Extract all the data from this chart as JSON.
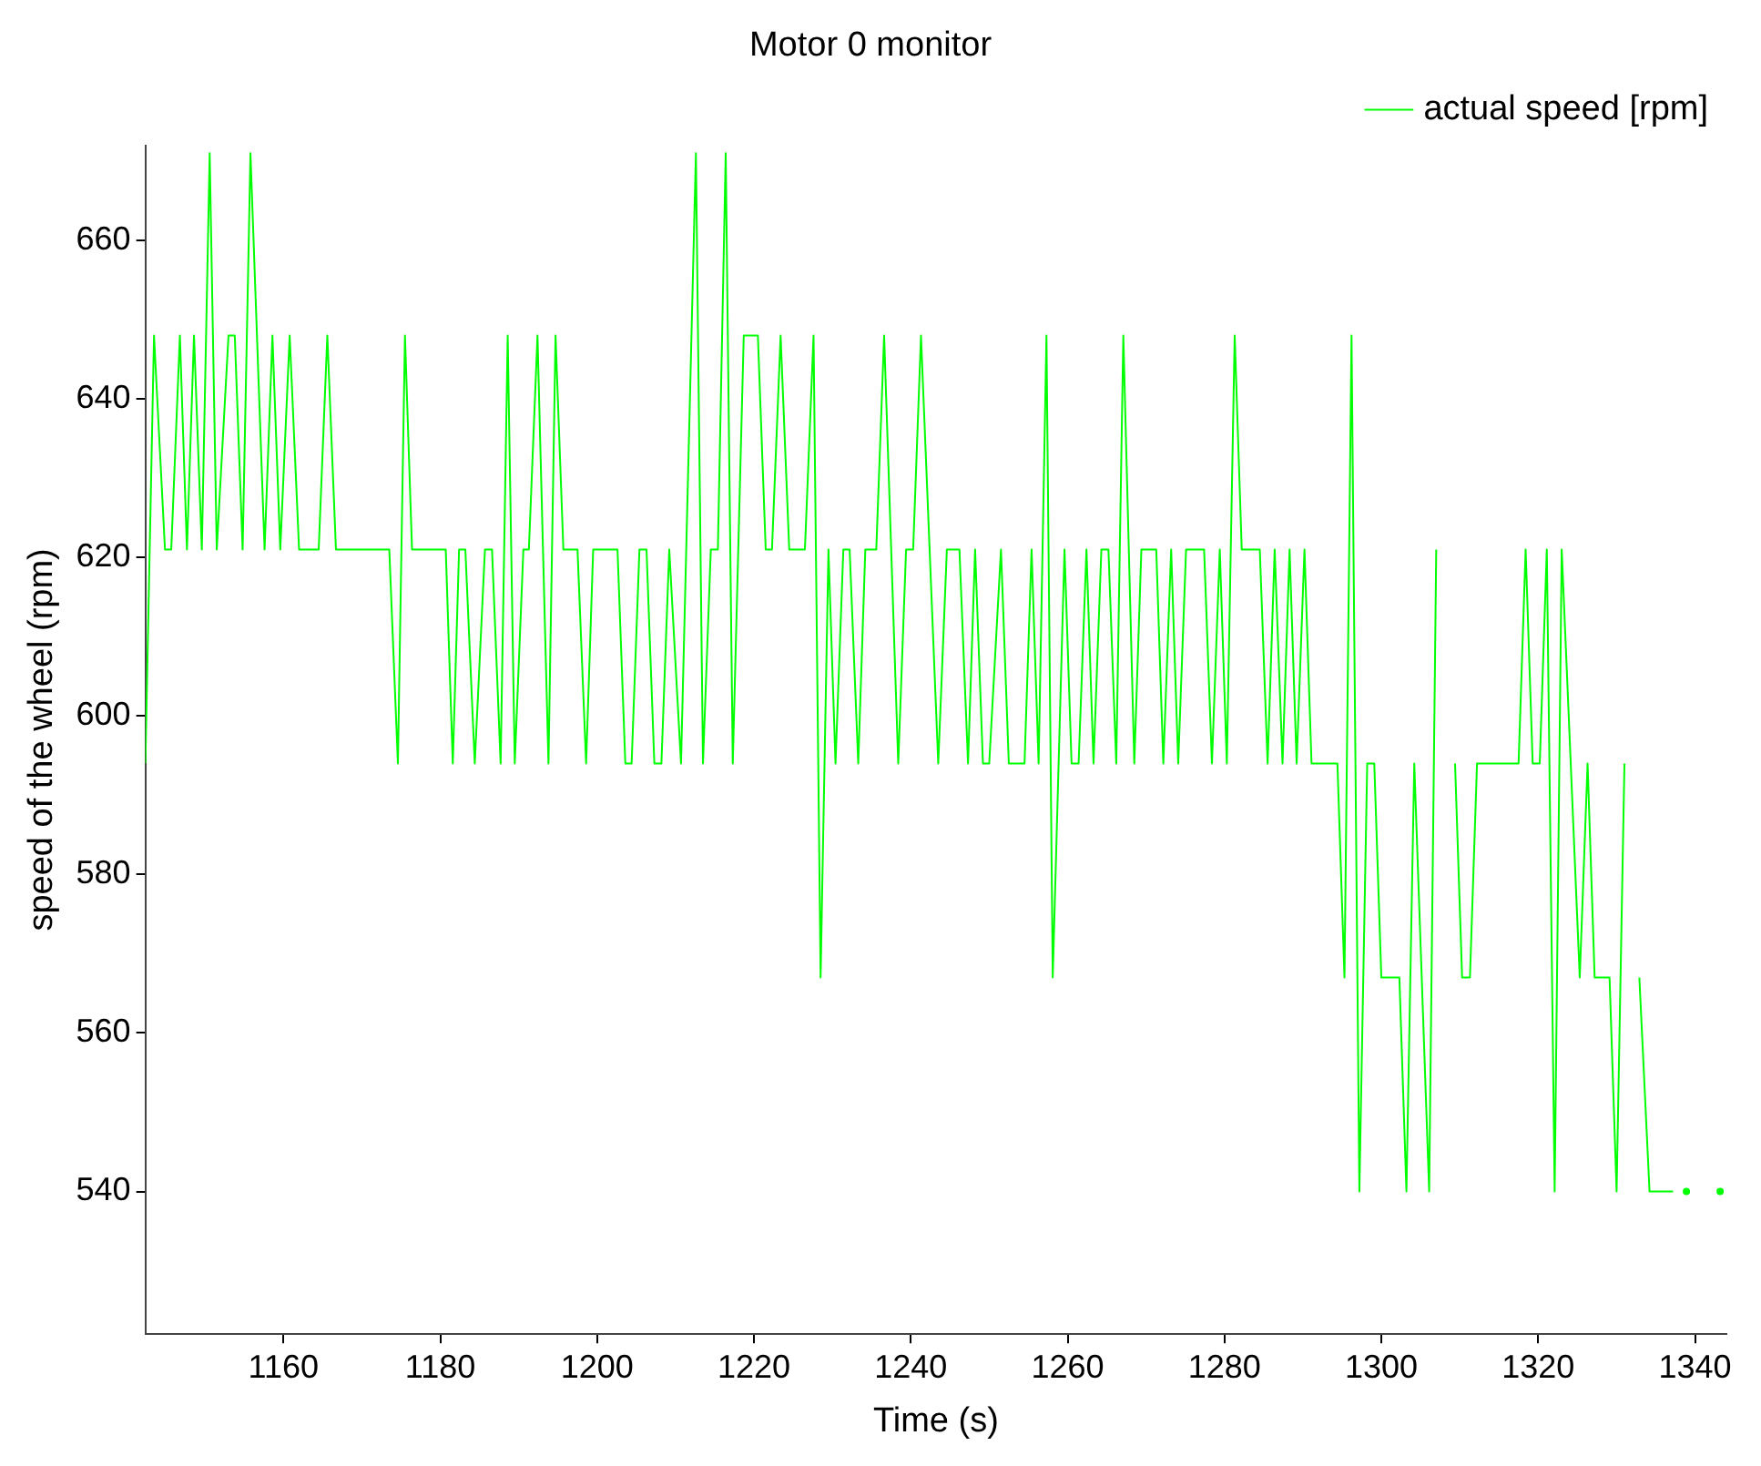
{
  "chart_data": {
    "type": "line",
    "title": "Motor 0 monitor",
    "xlabel": "Time (s)",
    "ylabel": "speed of the wheel (rpm)",
    "xlim": [
      1142.4,
      1344
    ],
    "xticks": [
      1160,
      1180,
      1200,
      1220,
      1240,
      1260,
      1280,
      1300,
      1320,
      1340
    ],
    "ylim": [
      522,
      672
    ],
    "yticks": [
      540,
      560,
      580,
      600,
      620,
      640,
      660
    ],
    "grid": false,
    "legend": "top right",
    "marker": "none",
    "line_style": "solid",
    "series": [
      {
        "name": "actual speed [rpm]",
        "color": "#00ff00",
        "x": [
          1142.4,
          1143.5,
          1144.9,
          1145.7,
          1146.8,
          1147.7,
          1148.6,
          1149.6,
          1150.6,
          1151.5,
          1153,
          1153.8,
          1154.8,
          1155.8,
          1157.6,
          1158.6,
          1159.6,
          1160.8,
          1162,
          1164.5,
          1165.6,
          1166.7,
          1173.5,
          1174.6,
          1175.5,
          1176.4,
          1180.7,
          1181.6,
          1182.4,
          1183.2,
          1184.4,
          1185.7,
          1186.6,
          1187.7,
          1188.6,
          1189.5,
          1190.6,
          1191.3,
          1192.4,
          1193.8,
          1194.7,
          1195.7,
          1197.5,
          1198.6,
          1199.5,
          1202.6,
          1203.6,
          1204.4,
          1205.4,
          1206.3,
          1207.3,
          1208.2,
          1209.2,
          1210.7,
          1212.6,
          1213.5,
          1214.5,
          1215.4,
          1216.4,
          1217.3,
          1218.7,
          1220.5,
          1221.5,
          1222.3,
          1223.4,
          1224.5,
          1226.5,
          1227.6,
          1228.5,
          1229.5,
          1230.4,
          1231.4,
          1232.2,
          1233.3,
          1234.2,
          1235.6,
          1236.6,
          1238.4,
          1239.4,
          1240.3,
          1241.3,
          1243.5,
          1244.6,
          1246.2,
          1247.3,
          1248.2,
          1249.2,
          1250,
          1251.5,
          1252.5,
          1254.5,
          1255.4,
          1256.3,
          1257.3,
          1258.1,
          1259.6,
          1260.5,
          1261.4,
          1262.4,
          1263.3,
          1264.3,
          1265.2,
          1266.2,
          1267.1,
          1268.5,
          1269.4,
          1271.3,
          1272.2,
          1273.2,
          1274.1,
          1275.1,
          1277.4,
          1278.4,
          1279.4,
          1280.3,
          1281.3,
          1282.2,
          1284.5,
          1285.5,
          1286.4,
          1287.4,
          1288.3,
          1289.2,
          1290.2,
          1291.1,
          1294.4,
          1295.3,
          1296.2,
          1297.2,
          1298.2,
          1299.1,
          1300,
          1302.3,
          1303.2,
          1304.2,
          1306.1,
          1307,
          1308.1,
          1309.4,
          1310.3,
          1311.3,
          1312.2,
          1317.5,
          1318.4,
          1319.3,
          1320.2,
          1321.1,
          1322.1,
          1323,
          1325.3,
          1326.3,
          1327.2,
          1329.1,
          1330,
          1331,
          1332,
          1332.9,
          1334.2,
          1337.2,
          1338,
          1338.9,
          1339.9,
          1342.3,
          1343.2
        ],
        "values": [
          594,
          648,
          621,
          621,
          648,
          621,
          648,
          621,
          671,
          621,
          648,
          648,
          621,
          671,
          621,
          648,
          621,
          648,
          621,
          621,
          648,
          621,
          621,
          594,
          648,
          621,
          621,
          594,
          621,
          621,
          594,
          621,
          621,
          594,
          648,
          594,
          621,
          621,
          648,
          594,
          648,
          621,
          621,
          594,
          621,
          621,
          594,
          594,
          621,
          621,
          594,
          594,
          621,
          594,
          671,
          594,
          621,
          621,
          671,
          594,
          648,
          648,
          621,
          621,
          648,
          621,
          621,
          648,
          567,
          621,
          594,
          621,
          621,
          594,
          621,
          621,
          648,
          594,
          621,
          621,
          648,
          594,
          621,
          621,
          594,
          621,
          594,
          594,
          621,
          594,
          594,
          621,
          594,
          648,
          567,
          621,
          594,
          594,
          621,
          594,
          621,
          621,
          594,
          648,
          594,
          621,
          621,
          594,
          621,
          594,
          621,
          621,
          594,
          621,
          594,
          648,
          621,
          621,
          594,
          621,
          594,
          621,
          594,
          621,
          594,
          594,
          567,
          648,
          540,
          594,
          594,
          567,
          567,
          540,
          594,
          540,
          621,
          null,
          594,
          567,
          567,
          594,
          594,
          621,
          594,
          594,
          621,
          540,
          621,
          567,
          594,
          567,
          567,
          540,
          594,
          null,
          567,
          540,
          540,
          null,
          540,
          null,
          null,
          540
        ]
      }
    ]
  }
}
